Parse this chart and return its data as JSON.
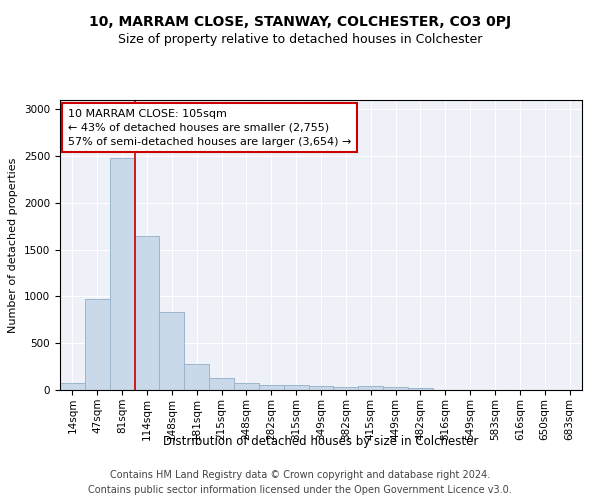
{
  "title": "10, MARRAM CLOSE, STANWAY, COLCHESTER, CO3 0PJ",
  "subtitle": "Size of property relative to detached houses in Colchester",
  "xlabel": "Distribution of detached houses by size in Colchester",
  "ylabel": "Number of detached properties",
  "categories": [
    "14sqm",
    "47sqm",
    "81sqm",
    "114sqm",
    "148sqm",
    "181sqm",
    "215sqm",
    "248sqm",
    "282sqm",
    "315sqm",
    "349sqm",
    "382sqm",
    "415sqm",
    "449sqm",
    "482sqm",
    "516sqm",
    "549sqm",
    "583sqm",
    "616sqm",
    "650sqm",
    "683sqm"
  ],
  "values": [
    75,
    970,
    2480,
    1650,
    830,
    275,
    130,
    75,
    55,
    50,
    45,
    35,
    40,
    35,
    20,
    5,
    2,
    1,
    1,
    1,
    1
  ],
  "bar_color": "#c9d9ea",
  "bar_edge_color": "#9ab5cc",
  "bar_linewidth": 0.7,
  "vline_color": "#cc0000",
  "vline_linewidth": 1.2,
  "vline_pos": 2.5,
  "annotation_text": "10 MARRAM CLOSE: 105sqm\n← 43% of detached houses are smaller (2,755)\n57% of semi-detached houses are larger (3,654) →",
  "annotation_box_color": "#cc0000",
  "ylim": [
    0,
    3100
  ],
  "yticks": [
    0,
    500,
    1000,
    1500,
    2000,
    2500,
    3000
  ],
  "background_color": "#eef2f8",
  "footer_line1": "Contains HM Land Registry data © Crown copyright and database right 2024.",
  "footer_line2": "Contains public sector information licensed under the Open Government Licence v3.0.",
  "title_fontsize": 10,
  "subtitle_fontsize": 9,
  "xlabel_fontsize": 8.5,
  "ylabel_fontsize": 8,
  "tick_fontsize": 7.5,
  "annotation_fontsize": 8,
  "footer_fontsize": 7
}
